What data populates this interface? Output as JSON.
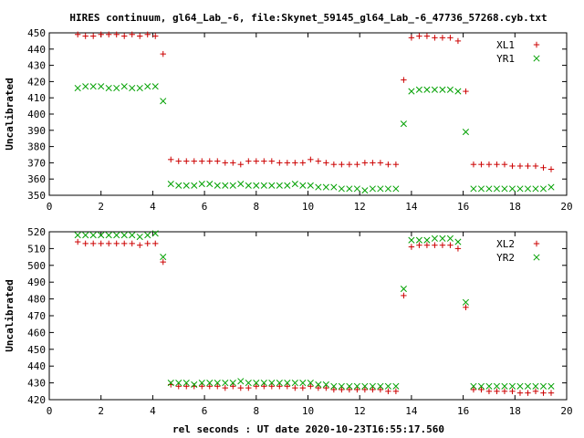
{
  "title": "HIRES continuum, gl64_Lab_-6, file:Skynet_59145_gl64_Lab_-6_47736_57268.cyb.txt",
  "xlabel": "rel seconds : UT date 2020-10-23T16:55:17.560",
  "colors": {
    "series1": "#cc0000",
    "series2": "#00a000",
    "axes": "#000000"
  },
  "chart_data": [
    {
      "type": "scatter",
      "ylabel": "Uncalibrated",
      "xlim": [
        0,
        20
      ],
      "ylim": [
        350,
        450
      ],
      "xticks": [
        0,
        2,
        4,
        6,
        8,
        10,
        12,
        14,
        16,
        18,
        20
      ],
      "yticks": [
        350,
        360,
        370,
        380,
        390,
        400,
        410,
        420,
        430,
        440,
        450
      ],
      "legend_position": "top-right",
      "series": [
        {
          "name": "XL1",
          "marker": "plus",
          "color": "#cc0000",
          "x": [
            1.1,
            1.4,
            1.7,
            2.0,
            2.3,
            2.6,
            2.9,
            3.2,
            3.5,
            3.8,
            4.1,
            4.4,
            4.7,
            5.0,
            5.3,
            5.6,
            5.9,
            6.2,
            6.5,
            6.8,
            7.1,
            7.4,
            7.7,
            8.0,
            8.3,
            8.6,
            8.9,
            9.2,
            9.5,
            9.8,
            10.1,
            10.4,
            10.7,
            11.0,
            11.3,
            11.6,
            11.9,
            12.2,
            12.5,
            12.8,
            13.1,
            13.4,
            13.7,
            14.0,
            14.3,
            14.6,
            14.9,
            15.2,
            15.5,
            15.8,
            16.1,
            16.4,
            16.7,
            17.0,
            17.3,
            17.6,
            17.9,
            18.2,
            18.5,
            18.8,
            19.1,
            19.4
          ],
          "y": [
            449,
            448,
            448,
            449,
            449,
            449,
            448,
            449,
            448,
            449,
            448,
            437,
            372,
            371,
            371,
            371,
            371,
            371,
            371,
            370,
            370,
            369,
            371,
            371,
            371,
            371,
            370,
            370,
            370,
            370,
            372,
            371,
            370,
            369,
            369,
            369,
            369,
            370,
            370,
            370,
            369,
            369,
            421,
            447,
            448,
            448,
            447,
            447,
            447,
            445,
            414,
            369,
            369,
            369,
            369,
            369,
            368,
            368,
            368,
            368,
            367,
            366
          ]
        },
        {
          "name": "YR1",
          "marker": "cross",
          "color": "#00a000",
          "x": [
            1.1,
            1.4,
            1.7,
            2.0,
            2.3,
            2.6,
            2.9,
            3.2,
            3.5,
            3.8,
            4.1,
            4.4,
            4.7,
            5.0,
            5.3,
            5.6,
            5.9,
            6.2,
            6.5,
            6.8,
            7.1,
            7.4,
            7.7,
            8.0,
            8.3,
            8.6,
            8.9,
            9.2,
            9.5,
            9.8,
            10.1,
            10.4,
            10.7,
            11.0,
            11.3,
            11.6,
            11.9,
            12.2,
            12.5,
            12.8,
            13.1,
            13.4,
            13.7,
            14.0,
            14.3,
            14.6,
            14.9,
            15.2,
            15.5,
            15.8,
            16.1,
            16.4,
            16.7,
            17.0,
            17.3,
            17.6,
            17.9,
            18.2,
            18.5,
            18.8,
            19.1,
            19.4
          ],
          "y": [
            416,
            417,
            417,
            417,
            416,
            416,
            417,
            416,
            416,
            417,
            417,
            408,
            357,
            356,
            356,
            356,
            357,
            357,
            356,
            356,
            356,
            357,
            356,
            356,
            356,
            356,
            356,
            356,
            357,
            356,
            356,
            355,
            355,
            355,
            354,
            354,
            354,
            353,
            354,
            354,
            354,
            354,
            394,
            414,
            415,
            415,
            415,
            415,
            415,
            414,
            389,
            354,
            354,
            354,
            354,
            354,
            354,
            354,
            354,
            354,
            354,
            355
          ]
        }
      ]
    },
    {
      "type": "scatter",
      "ylabel": "Uncalibrated",
      "xlim": [
        0,
        20
      ],
      "ylim": [
        420,
        520
      ],
      "xticks": [
        0,
        2,
        4,
        6,
        8,
        10,
        12,
        14,
        16,
        18,
        20
      ],
      "yticks": [
        420,
        430,
        440,
        450,
        460,
        470,
        480,
        490,
        500,
        510,
        520
      ],
      "legend_position": "top-right",
      "series": [
        {
          "name": "XL2",
          "marker": "plus",
          "color": "#cc0000",
          "x": [
            1.1,
            1.4,
            1.7,
            2.0,
            2.3,
            2.6,
            2.9,
            3.2,
            3.5,
            3.8,
            4.1,
            4.4,
            4.7,
            5.0,
            5.3,
            5.6,
            5.9,
            6.2,
            6.5,
            6.8,
            7.1,
            7.4,
            7.7,
            8.0,
            8.3,
            8.6,
            8.9,
            9.2,
            9.5,
            9.8,
            10.1,
            10.4,
            10.7,
            11.0,
            11.3,
            11.6,
            11.9,
            12.2,
            12.5,
            12.8,
            13.1,
            13.4,
            13.7,
            14.0,
            14.3,
            14.6,
            14.9,
            15.2,
            15.5,
            15.8,
            16.1,
            16.4,
            16.7,
            17.0,
            17.3,
            17.6,
            17.9,
            18.2,
            18.5,
            18.8,
            19.1,
            19.4
          ],
          "y": [
            514,
            513,
            513,
            513,
            513,
            513,
            513,
            513,
            512,
            513,
            513,
            502,
            429,
            428,
            428,
            428,
            428,
            428,
            428,
            427,
            428,
            427,
            427,
            428,
            428,
            428,
            428,
            428,
            427,
            427,
            428,
            427,
            427,
            426,
            426,
            426,
            426,
            426,
            426,
            426,
            425,
            425,
            482,
            511,
            512,
            512,
            512,
            512,
            512,
            510,
            475,
            426,
            426,
            425,
            425,
            425,
            425,
            424,
            424,
            425,
            424,
            424
          ]
        },
        {
          "name": "YR2",
          "marker": "cross",
          "color": "#00a000",
          "x": [
            1.1,
            1.4,
            1.7,
            2.0,
            2.3,
            2.6,
            2.9,
            3.2,
            3.5,
            3.8,
            4.1,
            4.4,
            4.7,
            5.0,
            5.3,
            5.6,
            5.9,
            6.2,
            6.5,
            6.8,
            7.1,
            7.4,
            7.7,
            8.0,
            8.3,
            8.6,
            8.9,
            9.2,
            9.5,
            9.8,
            10.1,
            10.4,
            10.7,
            11.0,
            11.3,
            11.6,
            11.9,
            12.2,
            12.5,
            12.8,
            13.1,
            13.4,
            13.7,
            14.0,
            14.3,
            14.6,
            14.9,
            15.2,
            15.5,
            15.8,
            16.1,
            16.4,
            16.7,
            17.0,
            17.3,
            17.6,
            17.9,
            18.2,
            18.5,
            18.8,
            19.1,
            19.4
          ],
          "y": [
            518,
            518,
            518,
            518,
            518,
            518,
            518,
            518,
            517,
            518,
            519,
            505,
            430,
            430,
            430,
            429,
            430,
            430,
            430,
            430,
            430,
            431,
            430,
            430,
            430,
            430,
            430,
            430,
            430,
            430,
            430,
            429,
            429,
            428,
            428,
            428,
            428,
            428,
            428,
            428,
            428,
            428,
            486,
            515,
            515,
            515,
            516,
            516,
            516,
            514,
            478,
            428,
            428,
            428,
            428,
            428,
            428,
            428,
            428,
            428,
            428,
            428
          ]
        }
      ]
    }
  ]
}
